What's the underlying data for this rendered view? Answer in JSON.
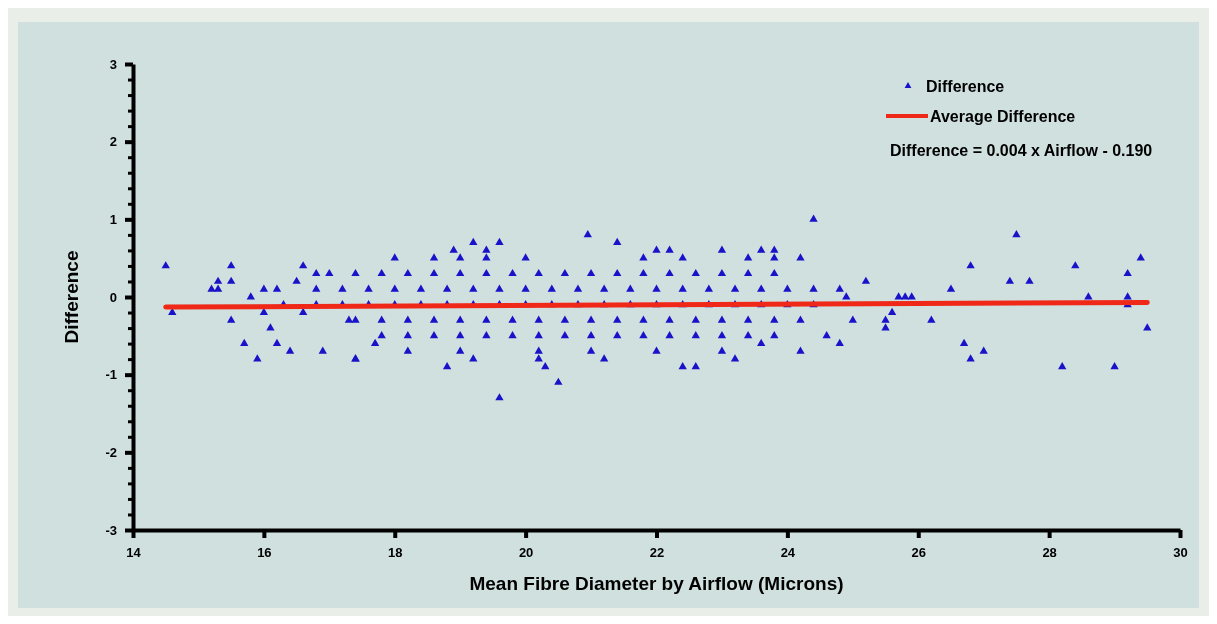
{
  "chart_data": {
    "type": "scatter",
    "xlabel": "Mean Fibre Diameter by Airflow (Microns)",
    "ylabel": "Difference",
    "xlim": [
      14,
      30
    ],
    "xticks": [
      14,
      16,
      18,
      20,
      22,
      24,
      26,
      28,
      30
    ],
    "ylim": [
      -3,
      3
    ],
    "yticks": [
      -3,
      {
        "value": -2.8,
        "label": null
      },
      {
        "value": -2.6,
        "label": null
      },
      {
        "value": -2.4,
        "label": null
      },
      {
        "value": -2.2,
        "label": null
      },
      -2,
      {
        "value": -1.8,
        "label": null
      },
      {
        "value": -1.6,
        "label": null
      },
      {
        "value": -1.4,
        "label": null
      },
      {
        "value": -1.2,
        "label": null
      },
      -1,
      {
        "value": -0.8,
        "label": null
      },
      {
        "value": -0.6,
        "label": null
      },
      {
        "value": -0.4,
        "label": null
      },
      {
        "value": -0.2,
        "label": null
      },
      0,
      {
        "value": 0.2,
        "label": null
      },
      {
        "value": 0.4,
        "label": null
      },
      {
        "value": 0.6,
        "label": null
      },
      {
        "value": 0.8,
        "label": null
      },
      1,
      {
        "value": 1.2,
        "label": null
      },
      {
        "value": 1.4,
        "label": null
      },
      {
        "value": 1.6,
        "label": null
      },
      {
        "value": 1.8,
        "label": null
      },
      2,
      {
        "value": 2.2,
        "label": null
      },
      {
        "value": 2.4,
        "label": null
      },
      {
        "value": 2.6,
        "label": null
      },
      {
        "value": 2.8,
        "label": null
      },
      3
    ],
    "legend": "top right",
    "annotations": [
      "Difference = 0.004 x Airflow - 0.190"
    ],
    "series": [
      {
        "name": "Difference",
        "marker": "triangle",
        "color": "#1a12c8",
        "x": [
          14.5,
          14.6,
          15.2,
          15.3,
          15.3,
          15.5,
          15.5,
          15.5,
          15.7,
          15.8,
          15.9,
          16,
          16,
          16.1,
          16.2,
          16.2,
          16.3,
          16.4,
          16.5,
          16.6,
          16.6,
          16.8,
          16.9,
          17.3,
          17.4,
          17.7,
          18,
          18.6,
          19,
          19.4,
          20,
          21.8,
          22.4,
          23.4,
          23.8,
          24.2,
          18.9,
          19.2,
          19.6,
          19.4,
          20.95,
          21.4,
          22,
          22.2,
          23,
          23.6,
          23.8,
          18.2,
          19,
          20.2,
          21,
          22,
          23,
          23.6,
          24.2,
          17.4,
          19.2,
          20.2,
          21.2,
          23.2,
          18.8,
          22.6,
          20.3,
          22.4,
          20.5,
          19.6,
          24.4,
          24.6,
          24.8,
          24.8,
          24.9,
          25,
          25.2,
          25.5,
          25.5,
          25.6,
          25.7,
          25.8,
          25.9,
          26.2,
          26.5,
          26.7,
          26.8,
          26.8,
          27,
          27.4,
          27.5,
          27.7,
          28.2,
          28.4,
          28.6,
          29,
          29.2,
          29.2,
          29.2,
          29.4,
          29.5,
          17,
          17.4,
          17.8,
          18.2,
          18.6,
          19,
          19.4,
          19.8,
          20.2,
          20.6,
          21,
          21.4,
          21.8,
          22.2,
          22.6,
          23,
          23.4,
          23.8,
          16.8,
          17.2,
          17.6,
          18,
          18.4,
          18.8,
          19.2,
          19.6,
          20,
          20.4,
          20.8,
          21.2,
          21.6,
          22,
          22.4,
          22.8,
          23.2,
          23.6,
          24,
          24.4,
          16.8,
          17.2,
          17.6,
          18,
          18.4,
          18.8,
          19.2,
          19.6,
          20,
          20.4,
          20.8,
          21.2,
          21.6,
          22,
          22.4,
          22.8,
          23.2,
          23.6,
          24,
          24.4,
          17.4,
          17.8,
          18.2,
          18.6,
          19,
          19.4,
          19.8,
          20.2,
          20.6,
          21,
          21.4,
          21.8,
          22.2,
          22.6,
          23,
          23.4,
          23.8,
          24.2,
          17.8,
          18.2,
          18.6,
          19,
          19.4,
          19.8,
          20.2,
          20.6,
          21,
          21.4,
          21.8,
          22.2,
          22.6,
          23,
          23.4,
          23.8
        ],
        "values": [
          0.4,
          -0.2,
          0.1,
          0.2,
          0.1,
          0.4,
          0.2,
          -0.3,
          -0.6,
          0,
          -0.8,
          0.1,
          -0.2,
          -0.4,
          0.1,
          -0.6,
          -0.1,
          -0.7,
          0.2,
          0.4,
          -0.2,
          0.3,
          -0.7,
          -0.3,
          -0.8,
          -0.6,
          0.5,
          0.5,
          0.5,
          0.5,
          0.5,
          0.5,
          0.5,
          0.5,
          0.5,
          0.5,
          0.6,
          0.7,
          0.7,
          0.6,
          0.8,
          0.7,
          0.6,
          0.6,
          0.6,
          0.6,
          0.6,
          -0.7,
          -0.7,
          -0.7,
          -0.7,
          -0.7,
          -0.7,
          -0.6,
          -0.7,
          -0.8,
          -0.8,
          -0.8,
          -0.8,
          -0.8,
          -0.9,
          -0.9,
          -0.9,
          -0.9,
          -1.1,
          -1.3,
          1,
          -0.5,
          -0.6,
          0.1,
          0,
          -0.3,
          0.2,
          -0.3,
          -0.4,
          -0.2,
          0,
          0,
          0,
          -0.3,
          0.1,
          -0.6,
          0.4,
          -0.8,
          -0.7,
          0.2,
          0.8,
          0.2,
          -0.9,
          0.4,
          0,
          -0.9,
          0.3,
          0,
          -0.1,
          0.5,
          -0.4,
          0.3,
          0.3,
          0.3,
          0.3,
          0.3,
          0.3,
          0.3,
          0.3,
          0.3,
          0.3,
          0.3,
          0.3,
          0.3,
          0.3,
          0.3,
          0.3,
          0.3,
          0.3,
          0.1,
          0.1,
          0.1,
          0.1,
          0.1,
          0.1,
          0.1,
          0.1,
          0.1,
          0.1,
          0.1,
          0.1,
          0.1,
          0.1,
          0.1,
          0.1,
          0.1,
          0.1,
          0.1,
          0.1,
          -0.1,
          -0.1,
          -0.1,
          -0.1,
          -0.1,
          -0.1,
          -0.1,
          -0.1,
          -0.1,
          -0.1,
          -0.1,
          -0.1,
          -0.1,
          -0.1,
          -0.1,
          -0.1,
          -0.1,
          -0.1,
          -0.1,
          -0.1,
          -0.3,
          -0.3,
          -0.3,
          -0.3,
          -0.3,
          -0.3,
          -0.3,
          -0.3,
          -0.3,
          -0.3,
          -0.3,
          -0.3,
          -0.3,
          -0.3,
          -0.3,
          -0.3,
          -0.3,
          -0.3,
          -0.5,
          -0.5,
          -0.5,
          -0.5,
          -0.5,
          -0.5,
          -0.5,
          -0.5,
          -0.5,
          -0.5,
          -0.5,
          -0.5,
          -0.5,
          -0.5,
          -0.5,
          -0.5
        ]
      },
      {
        "name": "Average Difference",
        "type": "line",
        "line_style": "solid",
        "color": "#f02818",
        "x": [
          14.5,
          29.5
        ],
        "values": [
          -0.13,
          -0.07
        ]
      }
    ]
  }
}
